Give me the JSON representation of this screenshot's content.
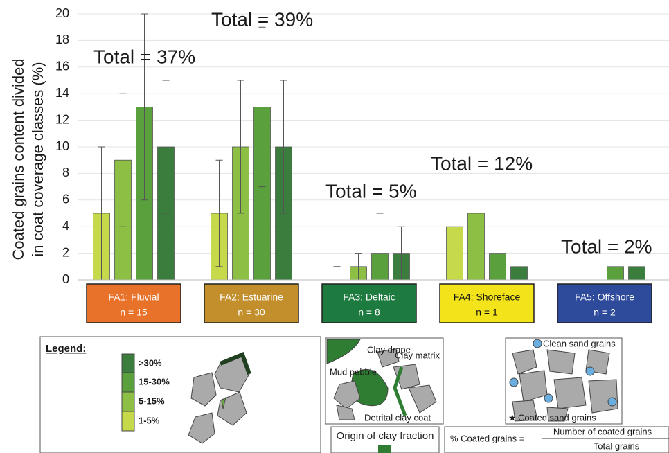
{
  "chart_data": {
    "type": "bar",
    "y_label": [
      "Coated grains content divided",
      "in coat coverage classes (%)"
    ],
    "categories": [
      "FA1: Fluvial",
      "FA2: Estuarine",
      "FA3: Deltaic",
      "FA4: Shoreface",
      "FA5: Offshore"
    ],
    "category_notes": [
      "n = 15",
      "n = 30",
      "n = 8",
      "n = 1",
      "n = 2"
    ],
    "category_colors": [
      "#e8722a",
      "#c38f2d",
      "#1e7b3f",
      "#f2e31a",
      "#2e4b9b"
    ],
    "annotations": [
      "Total = 37%",
      "Total = 39%",
      "Total = 5%",
      "Total = 12%",
      "Total = 2%"
    ],
    "series": [
      {
        "name": "1-5%",
        "color": "#c6d94a",
        "values": [
          5,
          5,
          0,
          4,
          null
        ],
        "errors": [
          5,
          4,
          1,
          null,
          null
        ]
      },
      {
        "name": "5-15%",
        "color": "#8dbf45",
        "values": [
          9,
          10,
          1,
          5,
          null
        ],
        "errors": [
          5,
          5,
          1,
          null,
          null
        ]
      },
      {
        "name": "15-30%",
        "color": "#5aa03c",
        "values": [
          13,
          13,
          2,
          2,
          1
        ],
        "errors": [
          7,
          6,
          3,
          null,
          null
        ]
      },
      {
        "name": ">30%",
        "color": "#3b7d3c",
        "values": [
          10,
          10,
          2,
          1,
          1
        ],
        "errors": [
          5,
          5,
          2,
          null,
          null
        ]
      }
    ],
    "ylim": [
      0,
      20
    ],
    "yticks": [
      0,
      2,
      4,
      6,
      8,
      10,
      12,
      14,
      16,
      18,
      20
    ],
    "grid": true
  },
  "diagram": {
    "legend_title": "Legend:",
    "clay_labels": [
      "Clay drape",
      "Clay matrix",
      "Mud pebble",
      "Detrital clay coat"
    ],
    "origin_label": "Origin of clay fraction",
    "grain_labels": [
      "Clean sand grains",
      "Coated sand grains"
    ],
    "formula": {
      "left": "% Coated grains =",
      "numerator": "Number of coated grains",
      "denominator": "Total grains"
    }
  }
}
